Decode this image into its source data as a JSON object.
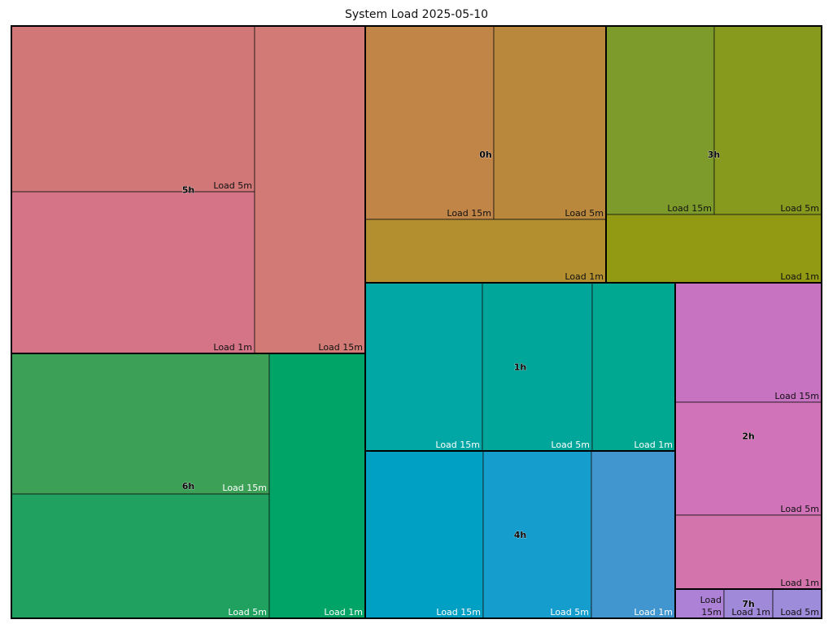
{
  "chart_data": {
    "type": "treemap",
    "title": "System Load  2025-05-10",
    "groups": [
      {
        "name": "5h",
        "items": [
          {
            "name": "Load 5m",
            "value": 60.7,
            "color": "#d27777",
            "label_color": "#111111"
          },
          {
            "name": "Load 1m",
            "value": 60.0,
            "color": "#d57387",
            "label_color": "#111111"
          },
          {
            "name": "Load 15m",
            "value": 55.7,
            "color": "#d27a75",
            "label_color": "#111111"
          }
        ]
      },
      {
        "name": "6h",
        "items": [
          {
            "name": "Load 15m",
            "value": 55.2,
            "color": "#3ca157",
            "label_color": "#ffffff"
          },
          {
            "name": "Load 5m",
            "value": 48.2,
            "color": "#21a160",
            "label_color": "#ffffff"
          },
          {
            "name": "Load 1m",
            "value": 38.6,
            "color": "#00a466",
            "label_color": "#ffffff"
          }
        ]
      },
      {
        "name": "0h",
        "items": [
          {
            "name": "Load 15m",
            "value": 37.3,
            "color": "#c18547",
            "label_color": "#111111"
          },
          {
            "name": "Load 5m",
            "value": 32.0,
            "color": "#b9883c",
            "label_color": "#111111"
          },
          {
            "name": "Load 1m",
            "value": 23.0,
            "color": "#b38f30",
            "label_color": "#111111"
          }
        ]
      },
      {
        "name": "3h",
        "items": [
          {
            "name": "Load 15m",
            "value": 27.5,
            "color": "#7d9b2a",
            "label_color": "#111111"
          },
          {
            "name": "Load 5m",
            "value": 27.9,
            "color": "#889a1e",
            "label_color": "#111111"
          },
          {
            "name": "Load 1m",
            "value": 16.8,
            "color": "#919a12",
            "label_color": "#111111"
          }
        ]
      },
      {
        "name": "1h",
        "items": [
          {
            "name": "Load 15m",
            "value": 30.9,
            "color": "#00a7a5",
            "label_color": "#ffffff"
          },
          {
            "name": "Load 5m",
            "value": 29.1,
            "color": "#00a69a",
            "label_color": "#ffffff"
          },
          {
            "name": "Load 1m",
            "value": 22.1,
            "color": "#00a791",
            "label_color": "#ffffff"
          }
        ]
      },
      {
        "name": "4h",
        "items": [
          {
            "name": "Load 15m",
            "value": 30.6,
            "color": "#00a0c5",
            "label_color": "#ffffff"
          },
          {
            "name": "Load 5m",
            "value": 28.5,
            "color": "#159ecd",
            "label_color": "#ffffff"
          },
          {
            "name": "Load 1m",
            "value": 21.8,
            "color": "#4296d0",
            "label_color": "#ffffff"
          }
        ]
      },
      {
        "name": "2h",
        "items": [
          {
            "name": "Load 15m",
            "value": 25.2,
            "color": "#c872c2",
            "label_color": "#111111"
          },
          {
            "name": "Load 5m",
            "value": 24.0,
            "color": "#d173b8",
            "label_color": "#111111"
          },
          {
            "name": "Load 1m",
            "value": 15.8,
            "color": "#d374ad",
            "label_color": "#111111"
          }
        ]
      },
      {
        "name": "7h",
        "items": [
          {
            "name": "Load 15m",
            "value": 1.8,
            "color": "#ad82d6",
            "label_color": "#111111"
          },
          {
            "name": "Load 1m",
            "value": 1.8,
            "color": "#a189d9",
            "label_color": "#111111"
          },
          {
            "name": "Load 5m",
            "value": 1.8,
            "color": "#9d8cda",
            "label_color": "#111111"
          }
        ]
      }
    ]
  }
}
